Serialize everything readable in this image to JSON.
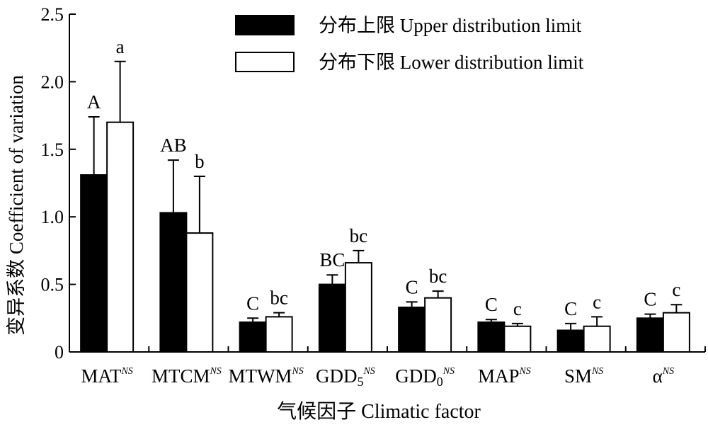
{
  "chart_data": {
    "type": "bar",
    "xlabel": "气候因子 Climatic factor",
    "ylabel": "变异系数 Coefficient of variation",
    "ylim": [
      0,
      2.5
    ],
    "yticks": [
      0,
      0.5,
      1.0,
      1.5,
      2.0,
      2.5
    ],
    "ytick_labels": [
      "0",
      "0.5",
      "1.0",
      "1.5",
      "2.0",
      "2.5"
    ],
    "grid": false,
    "legend_position": "top-right",
    "categories": [
      {
        "main": "MAT",
        "sub": "",
        "sup": "NS"
      },
      {
        "main": "MTCM",
        "sub": "",
        "sup": "NS"
      },
      {
        "main": "MTWM",
        "sub": "",
        "sup": "NS"
      },
      {
        "main": "GDD",
        "sub": "5",
        "sup": "NS"
      },
      {
        "main": "GDD",
        "sub": "0",
        "sup": "NS"
      },
      {
        "main": "MAP",
        "sub": "",
        "sup": "NS"
      },
      {
        "main": "SM",
        "sub": "",
        "sup": "NS"
      },
      {
        "main": "α",
        "sub": "",
        "sup": "NS"
      }
    ],
    "series": [
      {
        "name": "分布上限 Upper distribution limit",
        "color": "#000000",
        "values": [
          1.31,
          1.03,
          0.22,
          0.5,
          0.33,
          0.22,
          0.16,
          0.25
        ],
        "errors": [
          0.43,
          0.39,
          0.03,
          0.07,
          0.04,
          0.02,
          0.05,
          0.03
        ],
        "letters": [
          "A",
          "AB",
          "C",
          "BC",
          "C",
          "C",
          "C",
          "C"
        ]
      },
      {
        "name": "分布下限 Lower distribution limit",
        "color": "#ffffff",
        "values": [
          1.7,
          0.88,
          0.26,
          0.66,
          0.4,
          0.19,
          0.19,
          0.29
        ],
        "errors": [
          0.45,
          0.42,
          0.03,
          0.09,
          0.05,
          0.02,
          0.07,
          0.06
        ],
        "letters": [
          "a",
          "b",
          "bc",
          "bc",
          "bc",
          "c",
          "c",
          "c"
        ]
      }
    ]
  }
}
